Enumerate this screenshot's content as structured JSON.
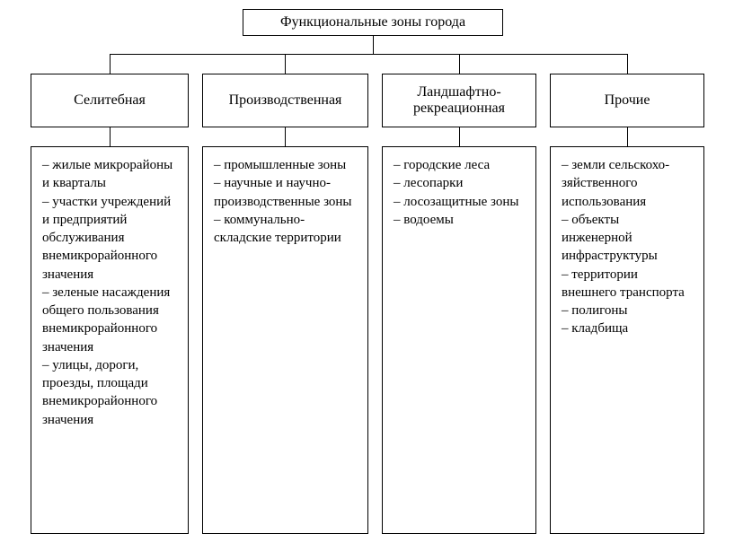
{
  "type": "tree",
  "background_color": "#ffffff",
  "border_color": "#000000",
  "text_color": "#000000",
  "font_family": "serif",
  "title_fontsize": 16,
  "category_fontsize": 16,
  "item_fontsize": 15,
  "root": {
    "label": "Функциональные зоны города"
  },
  "categories": [
    {
      "label": "Селитебная",
      "items": [
        "жилые микро­районы и квар­талы",
        "участки учреж­дений и предприя­тий обслуживания внемикрорайон­ного значения",
        "зеленые насаж­дения общего пользования вне­микрорайонного значения",
        "улицы, дороги, проезды, площади внемикрорайон­ного значения"
      ]
    },
    {
      "label": "Производственная",
      "items": [
        "промышленные зоны",
        "научные и научно-произ­водственные зоны",
        "коммунально-складские терри­тории"
      ]
    },
    {
      "label": "Ландшафтно-рекреационная",
      "items": [
        "городские леса",
        "лесопарки",
        "лосозащит­ные зоны",
        "водоемы"
      ]
    },
    {
      "label": "Прочие",
      "items": [
        "земли сельскохо­зяйственного использования",
        "объекты инженерной инфраструк­туры",
        "территории внешнего транспорта",
        "полигоны",
        "кладбища"
      ]
    }
  ]
}
